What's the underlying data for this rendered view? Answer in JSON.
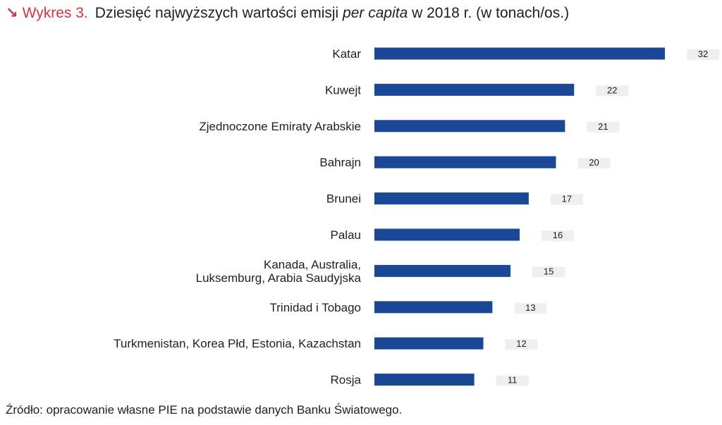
{
  "title": {
    "arrow": "↘",
    "prefix": "Wykres 3.",
    "main_before": "Dziesięć najwyższych wartości emisji",
    "main_italic": "per capita",
    "main_after": "w 2018 r. (w tonach/os.)"
  },
  "chart_data": {
    "type": "bar",
    "orientation": "horizontal",
    "title": "Dziesięć najwyższych wartości emisji per capita w 2018 r. (w tonach/os.)",
    "categories": [
      [
        "Katar"
      ],
      [
        "Kuwejt"
      ],
      [
        "Zjednoczone Emiraty Arabskie"
      ],
      [
        "Bahrajn"
      ],
      [
        "Brunei"
      ],
      [
        "Palau"
      ],
      [
        "Kanada, Australia,",
        "Luksemburg, Arabia Saudyjska"
      ],
      [
        "Trinidad i Tobago"
      ],
      [
        "Turkmenistan, Korea Płd, Estonia, Kazachstan"
      ],
      [
        "Rosja"
      ]
    ],
    "values": [
      32,
      22,
      21,
      20,
      17,
      16,
      15,
      13,
      12,
      11
    ],
    "xlim": [
      0,
      32
    ],
    "bar_color": "#1a4896",
    "label_bg_color": "#efefef",
    "xlabel": "",
    "ylabel": ""
  },
  "source": "Źródło: opracowanie własne PIE na podstawie danych Banku Światowego."
}
